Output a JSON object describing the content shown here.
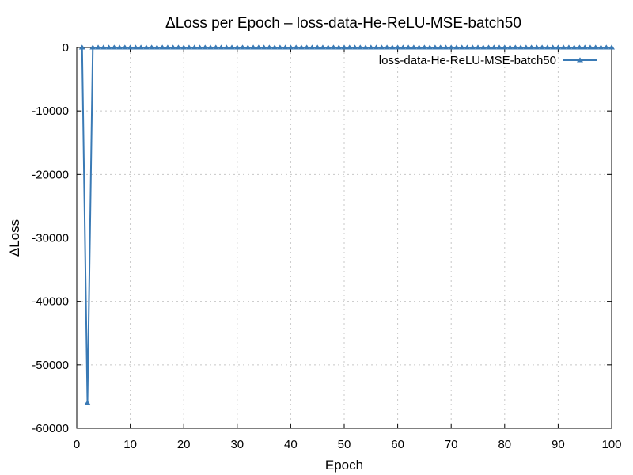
{
  "chart_data": {
    "type": "line",
    "title": "ΔLoss per Epoch – loss-data-He-ReLU-MSE-batch50",
    "xlabel": "Epoch",
    "ylabel": "ΔLoss",
    "xlim": [
      0,
      100
    ],
    "ylim": [
      -60000,
      0
    ],
    "xticks": [
      0,
      10,
      20,
      30,
      40,
      50,
      60,
      70,
      80,
      90,
      100
    ],
    "yticks": [
      0,
      -10000,
      -20000,
      -30000,
      -40000,
      -50000,
      -60000
    ],
    "grid": true,
    "legend_position": "top-right",
    "series": [
      {
        "name": "loss-data-He-ReLU-MSE-batch50",
        "color": "#3a7ab5",
        "marker": "triangle",
        "x": [
          1,
          2,
          3,
          4,
          5,
          6,
          7,
          8,
          9,
          10,
          11,
          12,
          13,
          14,
          15,
          16,
          17,
          18,
          19,
          20,
          21,
          22,
          23,
          24,
          25,
          26,
          27,
          28,
          29,
          30,
          31,
          32,
          33,
          34,
          35,
          36,
          37,
          38,
          39,
          40,
          41,
          42,
          43,
          44,
          45,
          46,
          47,
          48,
          49,
          50,
          51,
          52,
          53,
          54,
          55,
          56,
          57,
          58,
          59,
          60,
          61,
          62,
          63,
          64,
          65,
          66,
          67,
          68,
          69,
          70,
          71,
          72,
          73,
          74,
          75,
          76,
          77,
          78,
          79,
          80,
          81,
          82,
          83,
          84,
          85,
          86,
          87,
          88,
          89,
          90,
          91,
          92,
          93,
          94,
          95,
          96,
          97,
          98,
          99,
          100
        ],
        "y": [
          0,
          -56000,
          0,
          0,
          0,
          0,
          0,
          0,
          0,
          0,
          0,
          0,
          0,
          0,
          0,
          0,
          0,
          0,
          0,
          0,
          0,
          0,
          0,
          0,
          0,
          0,
          0,
          0,
          0,
          0,
          0,
          0,
          0,
          0,
          0,
          0,
          0,
          0,
          0,
          0,
          0,
          0,
          0,
          0,
          0,
          0,
          0,
          0,
          0,
          0,
          0,
          0,
          0,
          0,
          0,
          0,
          0,
          0,
          0,
          0,
          0,
          0,
          0,
          0,
          0,
          0,
          0,
          0,
          0,
          0,
          0,
          0,
          0,
          0,
          0,
          0,
          0,
          0,
          0,
          0,
          0,
          0,
          0,
          0,
          0,
          0,
          0,
          0,
          0,
          0,
          0,
          0,
          0,
          0,
          0,
          0,
          0,
          0,
          0,
          0
        ]
      }
    ]
  }
}
